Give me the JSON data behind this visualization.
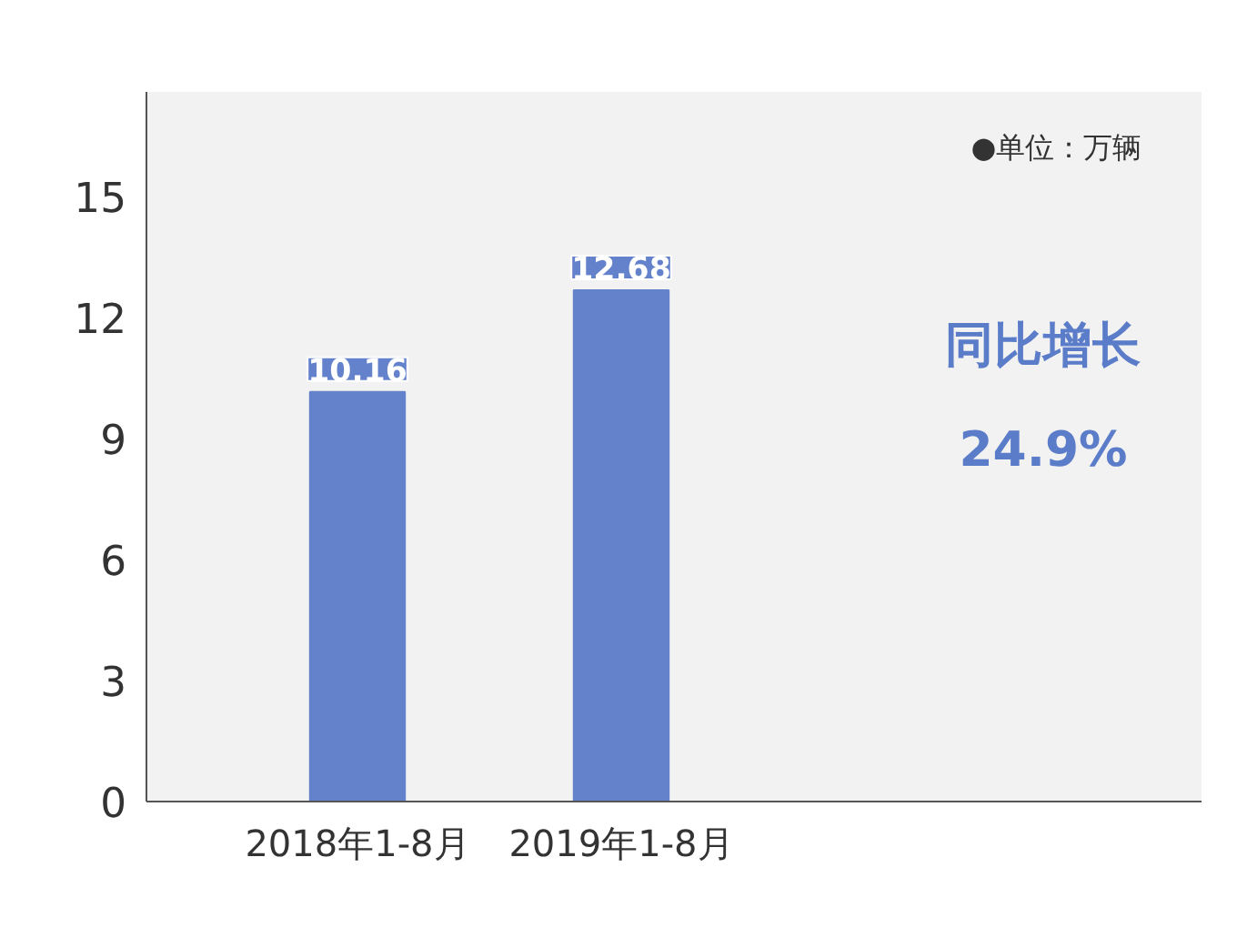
{
  "chart_data": {
    "type": "bar",
    "categories": [
      "2018年1-8月",
      "2019年1-8月"
    ],
    "series": [
      {
        "color": "#6482cc",
        "values": [
          10.16,
          12.68
        ]
      }
    ],
    "data_labels": true,
    "ylim": [
      0,
      17.6
    ],
    "yticks": [
      0,
      3,
      6,
      9,
      12,
      15
    ],
    "grid": false,
    "annotations": [
      "●单位：万辆",
      "同比增长",
      "24.9%"
    ]
  }
}
